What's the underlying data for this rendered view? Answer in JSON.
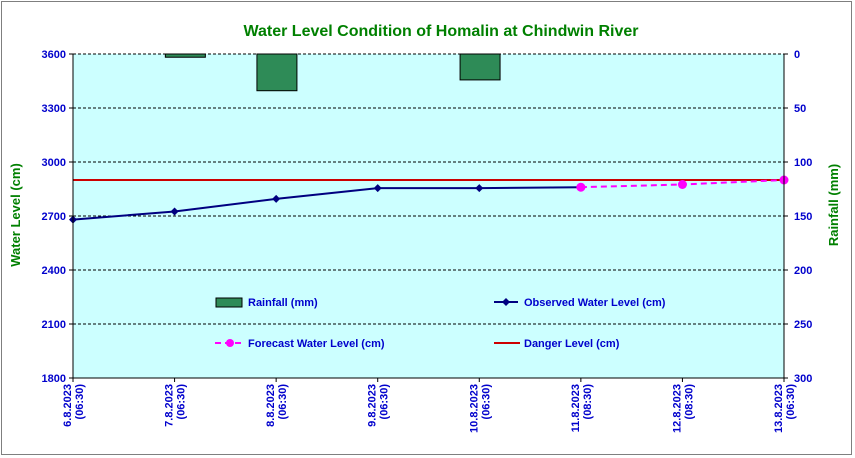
{
  "chart_data": {
    "type": "line",
    "title": "Water Level Condition of Homalin at Chindwin River",
    "ylabel": "Water Level (cm)",
    "y2label": "Rainfall (mm)",
    "ylim": [
      1800,
      3600
    ],
    "y_ticks": [
      1800,
      2100,
      2400,
      2700,
      3000,
      3300,
      3600
    ],
    "y2lim": [
      0,
      300
    ],
    "y2_reversed": true,
    "y2_ticks": [
      0,
      50,
      100,
      150,
      200,
      250,
      300
    ],
    "x": [
      "6.8.2023 (06:30)",
      "7.8.2023 (06:30)",
      "8.8.2023 (06:30)",
      "9.8.2023 (06:30)",
      "10.8.2023 (06:30)",
      "11.8.2023 (08:30)",
      "12.8.2023 (08:30)",
      "13.8.2023 (06:30)"
    ],
    "grid": true,
    "series": [
      {
        "name": "Rainfall (mm)",
        "kind": "bar",
        "axis": "y2",
        "color": "#2e8b57",
        "values": [
          null,
          3,
          34,
          null,
          24,
          null,
          null,
          null
        ]
      },
      {
        "name": "Observed Water Level (cm)",
        "kind": "line",
        "axis": "y",
        "color": "#000080",
        "values": [
          2680,
          2725,
          2795,
          2855,
          2855,
          2860,
          null,
          null
        ]
      },
      {
        "name": "Forecast Water Level (cm)",
        "kind": "dashed-line",
        "axis": "y",
        "color": "#ff00ff",
        "values": [
          null,
          null,
          null,
          null,
          null,
          2860,
          2875,
          2900
        ]
      },
      {
        "name": "Danger Level (cm)",
        "kind": "hline",
        "axis": "y",
        "color": "#cc0000",
        "value": 2900
      }
    ],
    "background_color": "#ccffff"
  }
}
